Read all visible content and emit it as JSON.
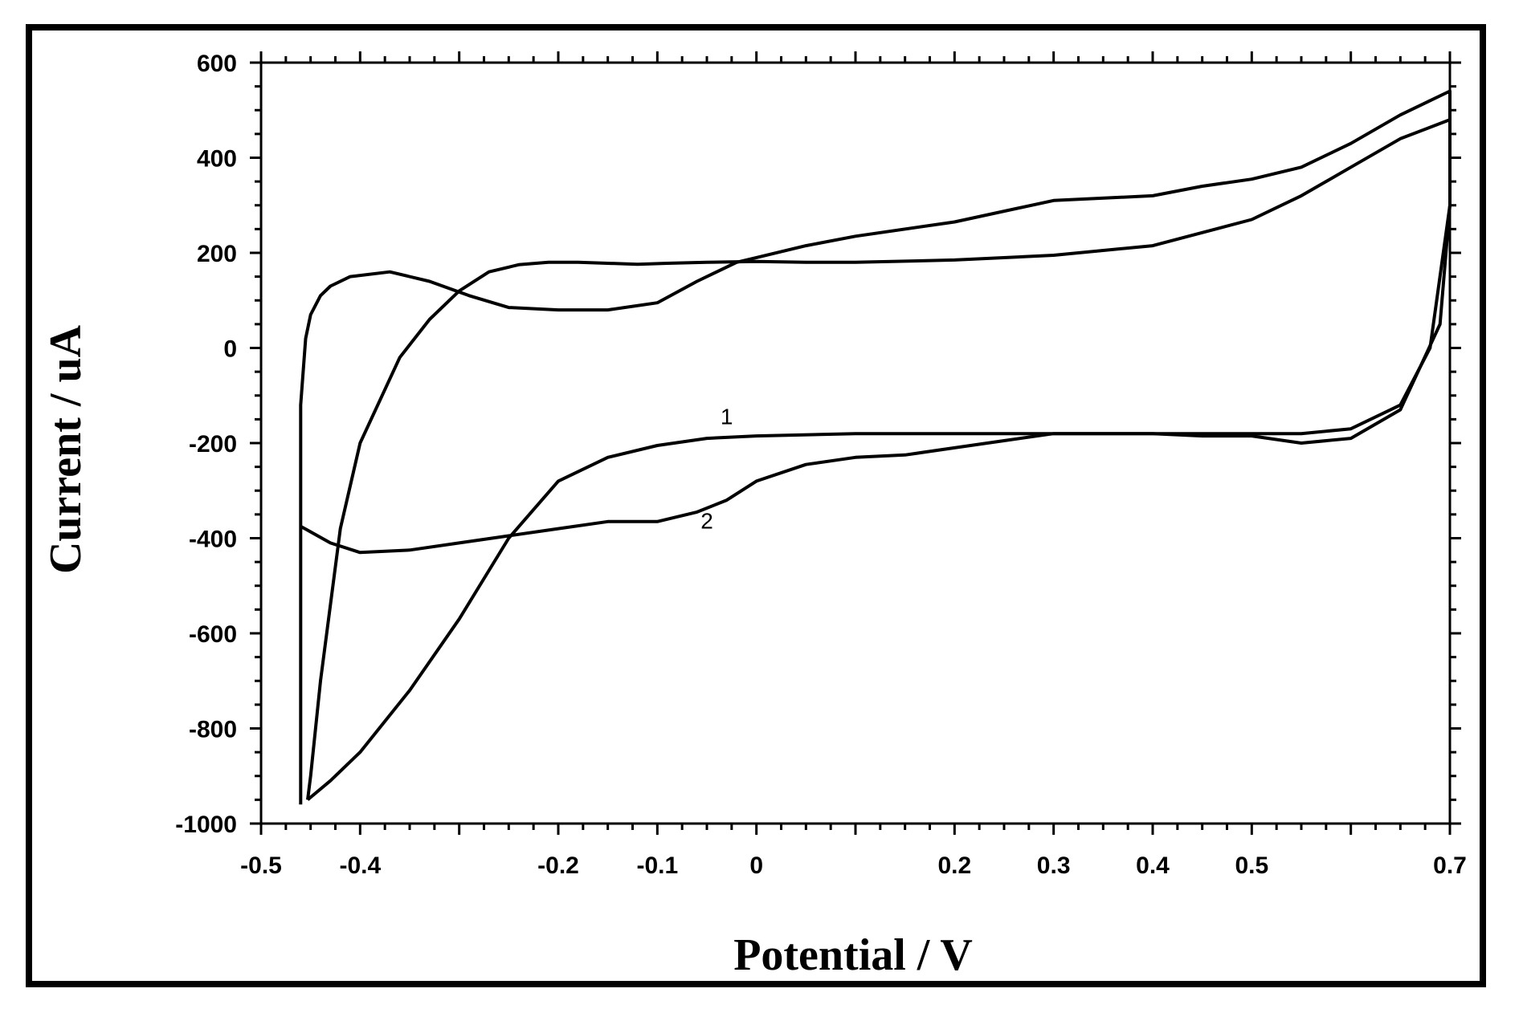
{
  "chart_data": {
    "type": "line",
    "xlabel": "Potential / V",
    "ylabel": "Current / uA",
    "xlim": [
      -0.5,
      0.7
    ],
    "ylim": [
      -1000,
      600
    ],
    "xticks": [
      "-0.5",
      "-0.4",
      "-0.2",
      "-0.1",
      "0",
      "0.2",
      "0.3",
      "0.4",
      "0.5",
      "0.7"
    ],
    "xtick_values": [
      -0.5,
      -0.4,
      -0.2,
      -0.1,
      0,
      0.2,
      0.3,
      0.4,
      0.5,
      0.7
    ],
    "yticks": [
      "600",
      "400",
      "200",
      "0",
      "-200",
      "-400",
      "-600",
      "-800",
      "-1000"
    ],
    "ytick_values": [
      600,
      400,
      200,
      0,
      -200,
      -400,
      -600,
      -800,
      -1000
    ],
    "grid": false,
    "series": [
      {
        "name": "1",
        "x": [
          -0.453,
          -0.45,
          -0.44,
          -0.42,
          -0.4,
          -0.36,
          -0.33,
          -0.3,
          -0.27,
          -0.24,
          -0.21,
          -0.18,
          -0.15,
          -0.12,
          -0.09,
          -0.05,
          0.0,
          0.05,
          0.1,
          0.2,
          0.3,
          0.4,
          0.5,
          0.55,
          0.6,
          0.65,
          0.7,
          0.7,
          0.7,
          0.68,
          0.65,
          0.6,
          0.55,
          0.5,
          0.45,
          0.4,
          0.35,
          0.3,
          0.25,
          0.2,
          0.1,
          0.0,
          -0.05,
          -0.1,
          -0.15,
          -0.2,
          -0.25,
          -0.3,
          -0.35,
          -0.4,
          -0.43,
          -0.453
        ],
        "y": [
          -950,
          -900,
          -700,
          -380,
          -200,
          -20,
          60,
          120,
          160,
          175,
          180,
          180,
          178,
          176,
          178,
          180,
          182,
          180,
          180,
          185,
          195,
          215,
          270,
          320,
          380,
          440,
          480,
          420,
          300,
          0,
          -120,
          -170,
          -180,
          -180,
          -180,
          -180,
          -180,
          -180,
          -180,
          -180,
          -180,
          -185,
          -190,
          -205,
          -230,
          -280,
          -400,
          -570,
          -720,
          -850,
          -910,
          -950
        ]
      },
      {
        "name": "2",
        "x": [
          -0.46,
          -0.46,
          -0.46,
          -0.455,
          -0.45,
          -0.44,
          -0.43,
          -0.41,
          -0.37,
          -0.33,
          -0.29,
          -0.25,
          -0.2,
          -0.15,
          -0.1,
          -0.06,
          -0.02,
          0.0,
          0.05,
          0.1,
          0.2,
          0.3,
          0.4,
          0.45,
          0.5,
          0.55,
          0.6,
          0.65,
          0.7,
          0.7,
          0.69,
          0.65,
          0.6,
          0.55,
          0.5,
          0.45,
          0.4,
          0.35,
          0.3,
          0.25,
          0.2,
          0.15,
          0.1,
          0.05,
          0.0,
          -0.03,
          -0.06,
          -0.1,
          -0.15,
          -0.2,
          -0.25,
          -0.3,
          -0.35,
          -0.4,
          -0.43,
          -0.46
        ],
        "y": [
          -960,
          -600,
          -120,
          20,
          70,
          110,
          130,
          150,
          160,
          140,
          110,
          85,
          80,
          80,
          95,
          140,
          180,
          190,
          215,
          235,
          265,
          310,
          320,
          340,
          355,
          380,
          430,
          490,
          540,
          300,
          50,
          -130,
          -190,
          -200,
          -185,
          -185,
          -180,
          -180,
          -180,
          -195,
          -210,
          -225,
          -230,
          -245,
          -280,
          -320,
          -345,
          -365,
          -365,
          -380,
          -395,
          -410,
          -425,
          -430,
          -410,
          -375
        ]
      }
    ],
    "annotations": [
      {
        "text": "1",
        "x": -0.03,
        "y": -160
      },
      {
        "text": "2",
        "x": -0.05,
        "y": -380
      }
    ]
  }
}
